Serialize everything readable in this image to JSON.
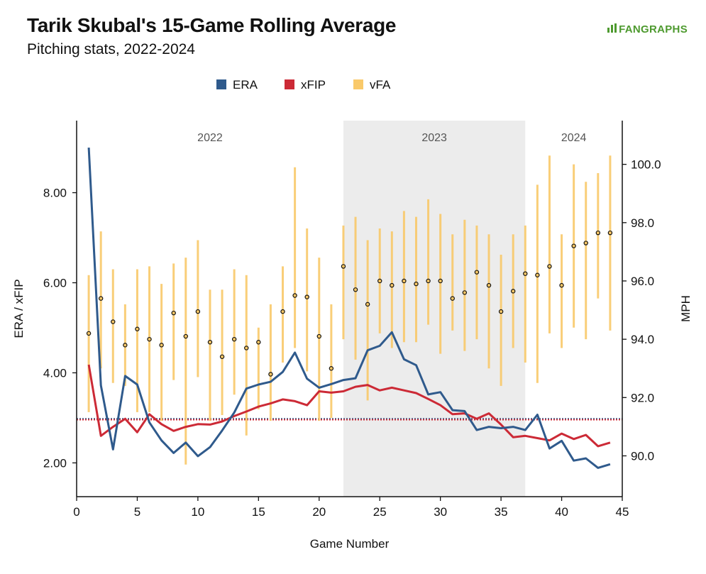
{
  "title": "Tarik Skubal's 15-Game Rolling Average",
  "subtitle": "Pitching stats, 2022-2024",
  "brand": "FANGRAPHS",
  "brand_icon": "fangraphs-logo-icon",
  "colors": {
    "era": "#2f5a8c",
    "xfip": "#cc2a36",
    "vfa": "#f9c96a",
    "vfa_point_fill": "#f6c666",
    "season_band": "#ececec",
    "axis": "#111111",
    "reference_line": "#2f5a8c"
  },
  "chart_data": {
    "type": "line",
    "xlabel": "Game Number",
    "ylabel_left": "ERA / xFIP",
    "ylabel_right": "MPH",
    "xlim": [
      0,
      45
    ],
    "ylim_left": [
      1.25,
      9.6
    ],
    "ylim_right": [
      88.6,
      101.5
    ],
    "x_ticks": [
      0,
      5,
      10,
      15,
      20,
      25,
      30,
      35,
      40,
      45
    ],
    "y_left_ticks": [
      2.0,
      4.0,
      6.0,
      8.0
    ],
    "y_left_tick_labels": [
      "2.00",
      "4.00",
      "6.00",
      "8.00"
    ],
    "y_right_ticks": [
      90.0,
      92.0,
      94.0,
      96.0,
      98.0,
      100.0
    ],
    "y_right_tick_labels": [
      "90.0",
      "92.0",
      "94.0",
      "96.0",
      "98.0",
      "100.0"
    ],
    "grid": false,
    "legend_position": "top-center",
    "seasons": [
      {
        "label": "2022",
        "start": 0,
        "end": 22,
        "shaded": false
      },
      {
        "label": "2023",
        "start": 22,
        "end": 37,
        "shaded": true
      },
      {
        "label": "2024",
        "start": 37,
        "end": 45,
        "shaded": false
      }
    ],
    "reference_lines": [
      {
        "series": "ERA",
        "value": 2.98
      },
      {
        "series": "xFIP",
        "value": 2.96
      }
    ],
    "series": [
      {
        "name": "ERA",
        "axis": "left",
        "x": [
          1,
          2,
          3,
          4,
          5,
          6,
          7,
          8,
          9,
          10,
          11,
          12,
          13,
          14,
          15,
          16,
          17,
          18,
          19,
          20,
          21,
          22,
          23,
          24,
          25,
          26,
          27,
          28,
          29,
          30,
          31,
          32,
          33,
          34,
          35,
          36,
          37,
          38,
          39,
          40,
          41,
          42,
          43,
          44
        ],
        "values": [
          9.0,
          3.72,
          2.3,
          3.93,
          3.74,
          2.9,
          2.5,
          2.22,
          2.45,
          2.15,
          2.35,
          2.72,
          3.12,
          3.65,
          3.74,
          3.8,
          4.02,
          4.45,
          3.87,
          3.67,
          3.75,
          3.84,
          3.88,
          4.5,
          4.6,
          4.9,
          4.3,
          4.17,
          3.52,
          3.57,
          3.17,
          3.15,
          2.73,
          2.8,
          2.77,
          2.8,
          2.73,
          3.07,
          2.32,
          2.49,
          2.05,
          2.1,
          1.89,
          1.97
        ]
      },
      {
        "name": "xFIP",
        "axis": "left",
        "x": [
          1,
          2,
          3,
          4,
          5,
          6,
          7,
          8,
          9,
          10,
          11,
          12,
          13,
          14,
          15,
          16,
          17,
          18,
          19,
          20,
          21,
          22,
          23,
          24,
          25,
          26,
          27,
          28,
          29,
          30,
          31,
          32,
          33,
          34,
          35,
          36,
          37,
          38,
          39,
          40,
          41,
          42,
          43,
          44
        ],
        "values": [
          4.18,
          2.6,
          2.8,
          2.98,
          2.68,
          3.08,
          2.86,
          2.71,
          2.8,
          2.86,
          2.85,
          2.92,
          3.04,
          3.14,
          3.25,
          3.32,
          3.41,
          3.37,
          3.28,
          3.59,
          3.56,
          3.59,
          3.69,
          3.73,
          3.61,
          3.67,
          3.61,
          3.55,
          3.42,
          3.28,
          3.08,
          3.1,
          2.98,
          3.1,
          2.85,
          2.57,
          2.6,
          2.55,
          2.5,
          2.65,
          2.53,
          2.62,
          2.37,
          2.45
        ]
      },
      {
        "name": "vFA",
        "axis": "right",
        "x": [
          1,
          2,
          3,
          4,
          5,
          6,
          7,
          8,
          9,
          10,
          11,
          12,
          13,
          14,
          15,
          16,
          17,
          18,
          19,
          20,
          21,
          22,
          23,
          24,
          25,
          26,
          27,
          28,
          29,
          30,
          31,
          32,
          33,
          34,
          35,
          36,
          37,
          38,
          39,
          40,
          41,
          42,
          43,
          44
        ],
        "values": [
          94.2,
          95.4,
          94.6,
          93.8,
          94.35,
          94.0,
          93.8,
          94.9,
          94.1,
          94.95,
          93.9,
          93.4,
          94.0,
          93.7,
          93.9,
          92.8,
          94.95,
          95.5,
          95.45,
          94.1,
          93.0,
          96.5,
          95.7,
          95.2,
          96.0,
          95.85,
          96.0,
          95.9,
          96.0,
          96.0,
          95.4,
          95.6,
          96.3,
          95.85,
          94.95,
          95.65,
          96.25,
          96.2,
          96.5,
          95.85,
          97.2,
          97.3,
          97.65,
          97.65
        ],
        "low": [
          91.5,
          93.0,
          92.5,
          92.4,
          91.5,
          91.5,
          91.2,
          92.6,
          89.7,
          92.7,
          91.2,
          91.4,
          92.1,
          90.7,
          91.6,
          91.2,
          93.2,
          93.7,
          92.9,
          91.2,
          91.3,
          94.0,
          93.3,
          91.9,
          94.2,
          93.7,
          93.9,
          93.9,
          94.5,
          93.5,
          94.3,
          93.6,
          94.0,
          93.0,
          92.4,
          93.7,
          93.2,
          92.5,
          94.2,
          93.7,
          94.4,
          94.0,
          95.4,
          94.3
        ],
        "high": [
          96.2,
          97.7,
          96.4,
          95.2,
          96.4,
          96.5,
          95.9,
          96.6,
          96.8,
          97.4,
          95.7,
          95.7,
          96.4,
          96.2,
          94.4,
          95.2,
          96.5,
          99.9,
          97.8,
          96.8,
          95.2,
          97.9,
          98.2,
          97.4,
          97.8,
          97.7,
          98.4,
          98.2,
          98.8,
          98.3,
          97.6,
          98.1,
          97.9,
          97.6,
          96.9,
          97.6,
          97.9,
          99.3,
          100.3,
          97.6,
          100.0,
          99.4,
          99.7,
          100.3
        ]
      }
    ]
  }
}
